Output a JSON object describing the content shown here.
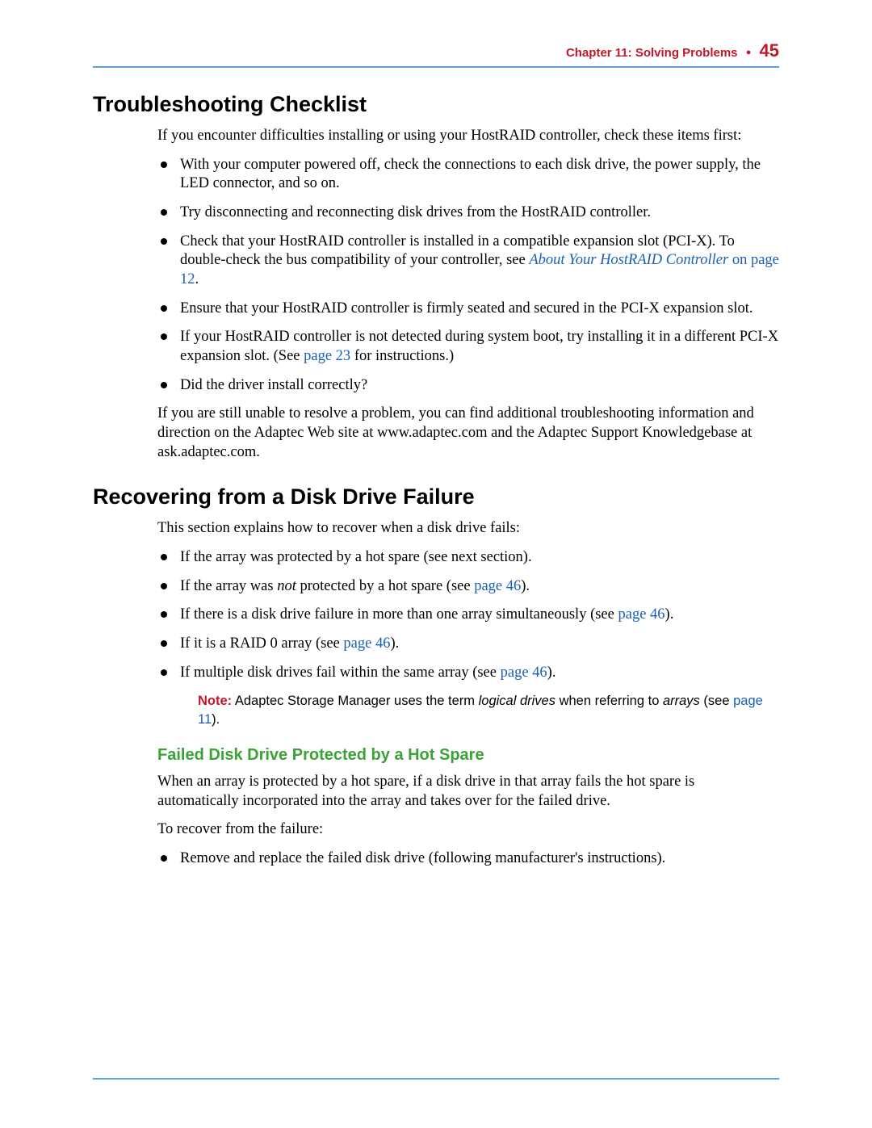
{
  "colors": {
    "rule": "#5ea0d8",
    "accent_red": "#c1172c",
    "link": "#1a5fb4",
    "green_heading": "#3aa335",
    "text": "#000000",
    "background": "#ffffff"
  },
  "typography": {
    "body_family": "serif",
    "heading_family": "sans-serif",
    "h1_size_pt": 20,
    "h2_size_pt": 15,
    "body_size_pt": 14,
    "note_size_pt": 12
  },
  "header": {
    "chapter": "Chapter 11: Solving Problems",
    "page_number": "45"
  },
  "section1": {
    "title": "Troubleshooting Checklist",
    "intro": "If you encounter difficulties installing or using your HostRAID controller, check these items first:",
    "bullets": [
      {
        "text": "With your computer powered off, check the connections to each disk drive, the power supply, the LED connector, and so on."
      },
      {
        "text": "Try disconnecting and reconnecting disk drives from the HostRAID controller."
      },
      {
        "pre": "Check that your HostRAID controller is installed in a compatible expansion slot (PCI-X). To double-check the bus compatibility of your controller, see ",
        "link_ital": "About Your HostRAID Controller",
        "link_tail": " on page 12",
        "post": "."
      },
      {
        "text": "Ensure that your HostRAID controller is firmly seated and secured in the PCI-X expansion slot."
      },
      {
        "pre": "If your HostRAID controller is not detected during system boot, try installing it in a different PCI-X expansion slot. (See ",
        "link": "page 23",
        "post": " for instructions.)"
      },
      {
        "text": "Did the driver install correctly?"
      }
    ],
    "outro": "If you are still unable to resolve a problem, you can find additional troubleshooting information and direction on the Adaptec Web site at www.adaptec.com and the Adaptec Support Knowledgebase at ask.adaptec.com."
  },
  "section2": {
    "title": "Recovering from a Disk Drive Failure",
    "intro": "This section explains how to recover when a disk drive fails:",
    "bullets": [
      {
        "text": "If the array was protected by a hot spare (see next section)."
      },
      {
        "pre": "If the array was ",
        "ital": "not",
        "mid": " protected by a hot spare (see ",
        "link": "page 46",
        "post": ")."
      },
      {
        "pre": "If there is a disk drive failure in more than one array simultaneously (see ",
        "link": "page 46",
        "post": ")."
      },
      {
        "pre": "If it is a RAID 0 array (see ",
        "link": "page 46",
        "post": ")."
      },
      {
        "pre": "If multiple disk drives fail within the same array (see ",
        "link": "page 46",
        "post": ")."
      }
    ],
    "note": {
      "label": "Note:",
      "pre": " Adaptec Storage Manager uses the term ",
      "ital1": "logical drives",
      "mid": " when referring to ",
      "ital2": "arrays",
      "post": " (see ",
      "link": "page 11",
      "tail": ")."
    },
    "sub": {
      "title": "Failed Disk Drive Protected by a Hot Spare",
      "p1": "When an array is protected by a hot spare, if a disk drive in that array fails the hot spare is automatically incorporated into the array and takes over for the failed drive.",
      "p2": "To recover from the failure:",
      "bullets": [
        {
          "text": "Remove and replace the failed disk drive (following manufacturer's instructions)."
        }
      ]
    }
  }
}
